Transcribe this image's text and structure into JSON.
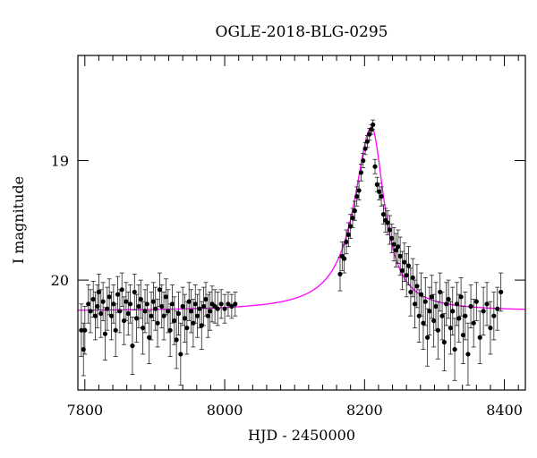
{
  "chart_data": {
    "type": "scatter",
    "title": "OGLE-2018-BLG-0295",
    "xlabel": "HJD - 2450000",
    "ylabel": "I magnitude",
    "xlim": [
      7790,
      8430
    ],
    "ylim": [
      20.92,
      18.12
    ],
    "y_inverted": true,
    "x_ticks": [
      7800,
      8000,
      8200,
      8400
    ],
    "x_tick_labels": [
      "7800",
      "8000",
      "8200",
      "8400"
    ],
    "y_ticks": [
      19,
      20
    ],
    "y_tick_labels": [
      "19",
      "20"
    ],
    "grid": false,
    "model_color": "#ff00ff",
    "model": {
      "t0": 8210,
      "baseline": 20.26,
      "peak": 18.72,
      "tau_rise": 30,
      "tau_fall": 22
    },
    "series": [
      {
        "points": [
          [
            7795,
            20.42
          ],
          [
            7798,
            20.58
          ],
          [
            7800,
            20.42
          ],
          [
            7805,
            20.2
          ],
          [
            7808,
            20.26
          ],
          [
            7812,
            20.16
          ],
          [
            7815,
            20.3
          ],
          [
            7818,
            20.22
          ],
          [
            7820,
            20.1
          ],
          [
            7823,
            20.28
          ],
          [
            7826,
            20.18
          ],
          [
            7829,
            20.45
          ],
          [
            7832,
            20.24
          ],
          [
            7835,
            20.14
          ],
          [
            7838,
            20.3
          ],
          [
            7841,
            20.2
          ],
          [
            7844,
            20.42
          ],
          [
            7847,
            20.12
          ],
          [
            7850,
            20.26
          ],
          [
            7853,
            20.08
          ],
          [
            7856,
            20.34
          ],
          [
            7859,
            20.18
          ],
          [
            7862,
            20.28
          ],
          [
            7865,
            20.2
          ],
          [
            7868,
            20.55
          ],
          [
            7871,
            20.1
          ],
          [
            7874,
            20.32
          ],
          [
            7877,
            20.22
          ],
          [
            7880,
            20.16
          ],
          [
            7883,
            20.4
          ],
          [
            7886,
            20.26
          ],
          [
            7889,
            20.2
          ],
          [
            7892,
            20.48
          ],
          [
            7895,
            20.3
          ],
          [
            7898,
            20.18
          ],
          [
            7901,
            20.24
          ],
          [
            7904,
            20.36
          ],
          [
            7907,
            20.08
          ],
          [
            7910,
            20.22
          ],
          [
            7913,
            20.3
          ],
          [
            7916,
            20.14
          ],
          [
            7919,
            20.26
          ],
          [
            7922,
            20.42
          ],
          [
            7925,
            20.2
          ],
          [
            7928,
            20.34
          ],
          [
            7931,
            20.5
          ],
          [
            7934,
            20.28
          ],
          [
            7937,
            20.62
          ],
          [
            7940,
            20.22
          ],
          [
            7943,
            20.32
          ],
          [
            7946,
            20.4
          ],
          [
            7949,
            20.18
          ],
          [
            7952,
            20.26
          ],
          [
            7955,
            20.36
          ],
          [
            7958,
            20.2
          ],
          [
            7961,
            20.3
          ],
          [
            7964,
            20.24
          ],
          [
            7967,
            20.38
          ],
          [
            7970,
            20.22
          ],
          [
            7973,
            20.16
          ],
          [
            7976,
            20.3
          ],
          [
            7979,
            20.26
          ],
          [
            7982,
            20.2
          ],
          [
            7986,
            20.22
          ],
          [
            7990,
            20.24
          ],
          [
            7995,
            20.2
          ],
          [
            8000,
            20.24
          ],
          [
            8005,
            20.2
          ],
          [
            8010,
            20.22
          ],
          [
            8015,
            20.2
          ],
          [
            8165,
            19.95
          ],
          [
            8168,
            19.8
          ],
          [
            8171,
            19.82
          ],
          [
            8174,
            19.68
          ],
          [
            8177,
            19.62
          ],
          [
            8180,
            19.55
          ],
          [
            8183,
            19.48
          ],
          [
            8186,
            19.42
          ],
          [
            8189,
            19.3
          ],
          [
            8192,
            19.25
          ],
          [
            8195,
            19.1
          ],
          [
            8198,
            19.0
          ],
          [
            8201,
            18.9
          ],
          [
            8204,
            18.84
          ],
          [
            8207,
            18.78
          ],
          [
            8210,
            18.74
          ],
          [
            8212,
            18.7
          ],
          [
            8215,
            19.05
          ],
          [
            8218,
            19.2
          ],
          [
            8221,
            19.26
          ],
          [
            8224,
            19.3
          ],
          [
            8227,
            19.45
          ],
          [
            8230,
            19.5
          ],
          [
            8233,
            19.52
          ],
          [
            8236,
            19.58
          ],
          [
            8239,
            19.65
          ],
          [
            8242,
            19.7
          ],
          [
            8245,
            19.75
          ],
          [
            8248,
            19.72
          ],
          [
            8251,
            19.8
          ],
          [
            8254,
            19.92
          ],
          [
            8257,
            19.85
          ],
          [
            8260,
            19.96
          ],
          [
            8263,
            19.88
          ],
          [
            8266,
            20.1
          ],
          [
            8269,
            19.98
          ],
          [
            8272,
            20.2
          ],
          [
            8275,
            20.05
          ],
          [
            8278,
            20.3
          ],
          [
            8281,
            20.12
          ],
          [
            8284,
            20.36
          ],
          [
            8287,
            20.18
          ],
          [
            8290,
            20.48
          ],
          [
            8293,
            20.26
          ],
          [
            8296,
            20.14
          ],
          [
            8299,
            20.34
          ],
          [
            8302,
            20.22
          ],
          [
            8305,
            20.42
          ],
          [
            8308,
            20.1
          ],
          [
            8311,
            20.3
          ],
          [
            8314,
            20.52
          ],
          [
            8317,
            20.2
          ],
          [
            8320,
            20.16
          ],
          [
            8323,
            20.4
          ],
          [
            8326,
            20.26
          ],
          [
            8329,
            20.58
          ],
          [
            8332,
            20.2
          ],
          [
            8335,
            20.32
          ],
          [
            8338,
            20.14
          ],
          [
            8341,
            20.46
          ],
          [
            8344,
            20.3
          ],
          [
            8348,
            20.62
          ],
          [
            8352,
            20.22
          ],
          [
            8356,
            20.36
          ],
          [
            8360,
            20.18
          ],
          [
            8365,
            20.48
          ],
          [
            8370,
            20.26
          ],
          [
            8375,
            20.2
          ],
          [
            8380,
            20.4
          ],
          [
            8385,
            20.3
          ],
          [
            8390,
            20.24
          ],
          [
            8395,
            20.1
          ]
        ],
        "errors": [
          0.22,
          0.22,
          0.2,
          0.16,
          0.18,
          0.15,
          0.2,
          0.18,
          0.15,
          0.2,
          0.16,
          0.22,
          0.18,
          0.15,
          0.2,
          0.16,
          0.22,
          0.15,
          0.18,
          0.14,
          0.2,
          0.16,
          0.18,
          0.16,
          0.24,
          0.15,
          0.2,
          0.18,
          0.16,
          0.22,
          0.18,
          0.16,
          0.22,
          0.2,
          0.16,
          0.18,
          0.2,
          0.14,
          0.18,
          0.2,
          0.15,
          0.18,
          0.22,
          0.16,
          0.2,
          0.24,
          0.18,
          0.26,
          0.16,
          0.2,
          0.22,
          0.16,
          0.18,
          0.2,
          0.16,
          0.18,
          0.16,
          0.2,
          0.16,
          0.14,
          0.18,
          0.16,
          0.15,
          0.14,
          0.14,
          0.12,
          0.12,
          0.1,
          0.1,
          0.1,
          0.14,
          0.12,
          0.12,
          0.1,
          0.1,
          0.1,
          0.08,
          0.08,
          0.08,
          0.08,
          0.07,
          0.06,
          0.05,
          0.05,
          0.05,
          0.04,
          0.04,
          0.06,
          0.06,
          0.07,
          0.08,
          0.08,
          0.1,
          0.1,
          0.12,
          0.12,
          0.14,
          0.14,
          0.14,
          0.16,
          0.16,
          0.16,
          0.18,
          0.16,
          0.2,
          0.16,
          0.2,
          0.18,
          0.22,
          0.18,
          0.22,
          0.2,
          0.24,
          0.2,
          0.18,
          0.22,
          0.2,
          0.24,
          0.16,
          0.2,
          0.24,
          0.18,
          0.16,
          0.22,
          0.2,
          0.26,
          0.18,
          0.2,
          0.16,
          0.24,
          0.2,
          0.26,
          0.18,
          0.2,
          0.16,
          0.22,
          0.2,
          0.18,
          0.22,
          0.2,
          0.18,
          0.16
        ]
      }
    ]
  }
}
